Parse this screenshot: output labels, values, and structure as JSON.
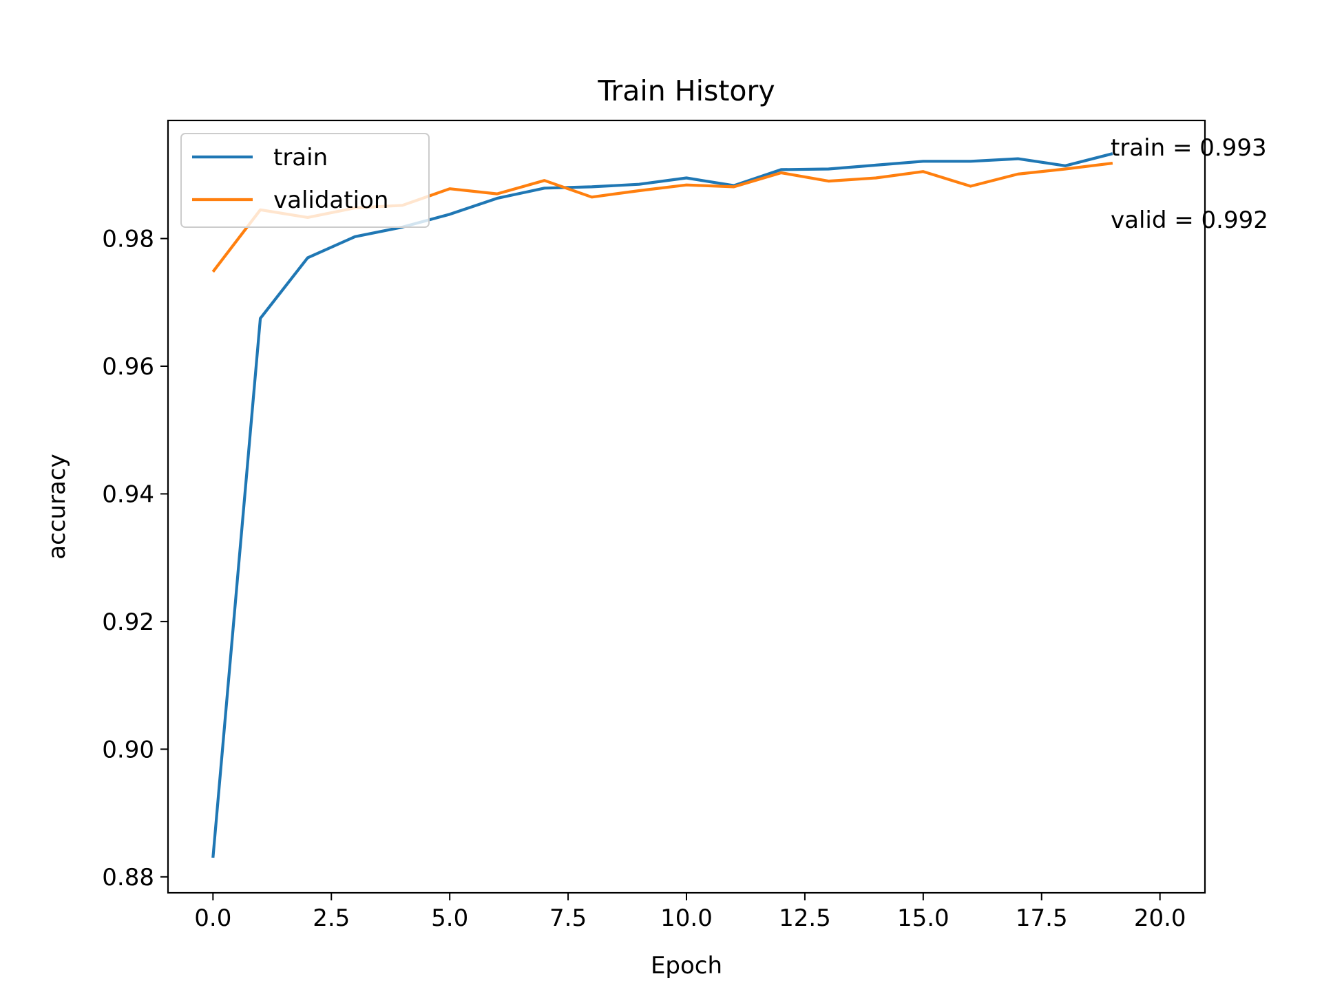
{
  "chart_data": {
    "type": "line",
    "title": "Train History",
    "xlabel": "Epoch",
    "ylabel": "accuracy",
    "xlim": [
      -0.95,
      20.95
    ],
    "ylim": [
      0.8775,
      0.9985
    ],
    "x_ticks": [
      0,
      2.5,
      5,
      7.5,
      10,
      12.5,
      15,
      17.5,
      20
    ],
    "x_tick_labels": [
      "0.0",
      "2.5",
      "5.0",
      "7.5",
      "10.0",
      "12.5",
      "15.0",
      "17.5",
      "20.0"
    ],
    "y_ticks": [
      0.88,
      0.9,
      0.92,
      0.94,
      0.96,
      0.98
    ],
    "y_tick_labels": [
      "0.88",
      "0.90",
      "0.92",
      "0.94",
      "0.96",
      "0.98"
    ],
    "grid": false,
    "legend_position": "upper-left",
    "x": [
      0,
      1,
      2,
      3,
      4,
      5,
      6,
      7,
      8,
      9,
      10,
      11,
      12,
      13,
      14,
      15,
      16,
      17,
      18,
      19
    ],
    "series": [
      {
        "name": "train",
        "color": "#1f77b4",
        "values": [
          0.883,
          0.9675,
          0.977,
          0.9803,
          0.9818,
          0.9838,
          0.9863,
          0.9879,
          0.9881,
          0.9885,
          0.9895,
          0.9883,
          0.9908,
          0.9909,
          0.9915,
          0.9921,
          0.9921,
          0.9925,
          0.9914,
          0.9933
        ]
      },
      {
        "name": "validation",
        "color": "#ff7f0e",
        "values": [
          0.9748,
          0.9845,
          0.9833,
          0.9848,
          0.9852,
          0.9878,
          0.987,
          0.9891,
          0.9865,
          0.9875,
          0.9884,
          0.9881,
          0.9903,
          0.989,
          0.9895,
          0.9905,
          0.9882,
          0.9901,
          0.9909,
          0.9918
        ]
      }
    ],
    "annotations": [
      {
        "text": "train = 0.993",
        "x": 19,
        "y": 0.9948
      },
      {
        "text": "valid = 0.992",
        "x": 19,
        "y": 0.9833
      }
    ]
  }
}
